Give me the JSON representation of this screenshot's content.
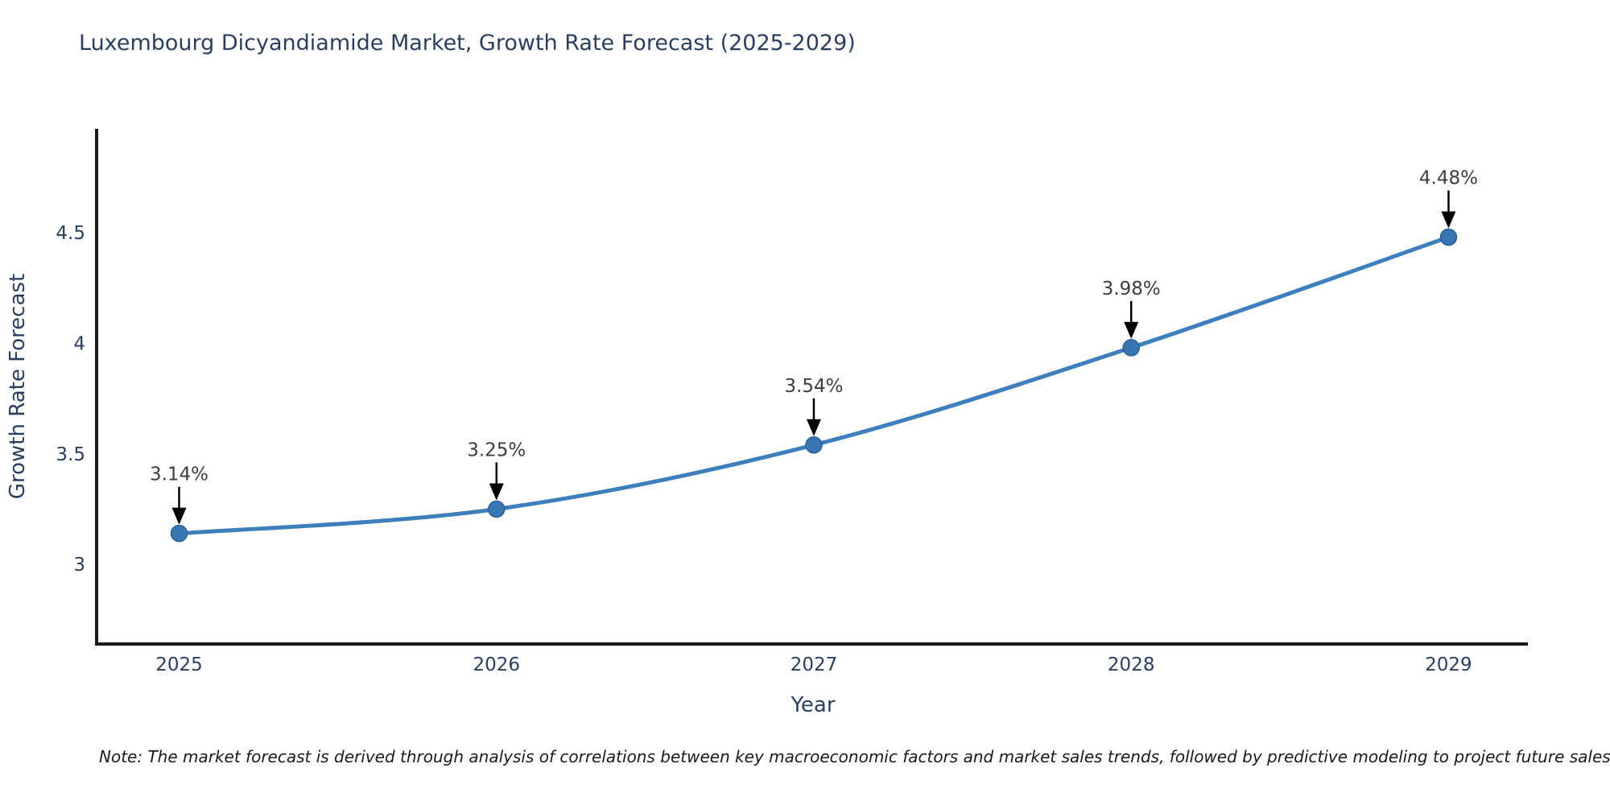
{
  "page": {
    "background": "#ffffff"
  },
  "header": {
    "title": "Luxembourg Dicyandiamide Market, Growth Rate Forecast (2025-2029)"
  },
  "footnote": {
    "text": "Note: The market forecast is derived through analysis of correlations between key macroeconomic factors and market sales trends, followed by predictive modeling to project future sales"
  },
  "chart_data": {
    "type": "line",
    "title": "Luxembourg Dicyandiamide Market, Growth Rate Forecast (2025-2029)",
    "xlabel": "Year",
    "ylabel": "Growth Rate Forecast",
    "x": [
      2025,
      2026,
      2027,
      2028,
      2029
    ],
    "series": [
      {
        "name": "Growth Rate Forecast",
        "values": [
          3.14,
          3.25,
          3.54,
          3.98,
          4.48
        ]
      }
    ],
    "point_labels": [
      "3.14%",
      "3.25%",
      "3.54%",
      "3.98%",
      "4.48%"
    ],
    "xticks": [
      2025,
      2026,
      2027,
      2028,
      2029
    ],
    "yticks": [
      3,
      3.5,
      4,
      4.5
    ],
    "xlim": [
      2024.74,
      2029.25
    ],
    "ylim": [
      2.64,
      4.97
    ],
    "grid": false,
    "legend": false,
    "line_shape": "spline",
    "colors": {
      "line": "#3d7ebc",
      "marker": "#3876b4",
      "marker_edge": "#2a5f94",
      "axis": "#1a1a1a",
      "tick_text": "#2a3f5f",
      "title_text": "#2a3f5f",
      "annotation_text": "#3d3d3d",
      "annotation_arrow": "#000000"
    }
  }
}
